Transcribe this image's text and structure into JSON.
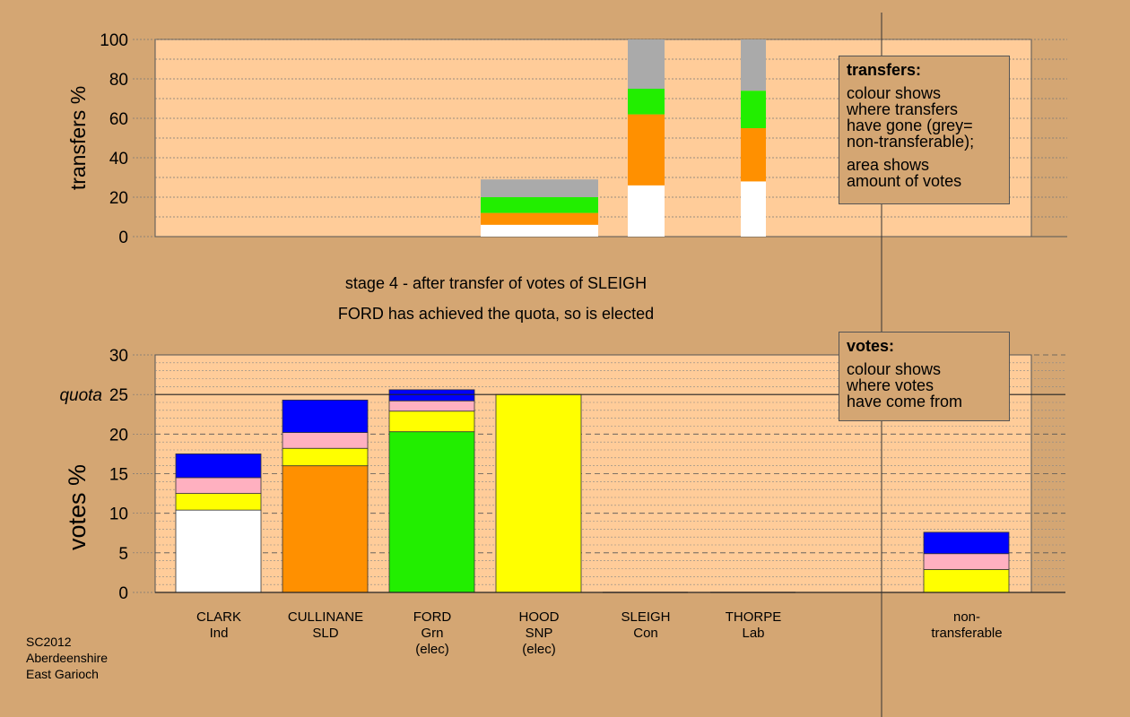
{
  "subtitle1": "stage 4 - after transfer of votes of SLEIGH",
  "subtitle2": "FORD has achieved the quota, so is elected",
  "source": [
    "SC2012",
    "Aberdeenshire",
    "East Garioch"
  ],
  "legend_transfers": {
    "title": "transfers:",
    "lines1": [
      "colour shows",
      "where transfers",
      "have gone (grey=",
      "non-transferable);"
    ],
    "lines2": [
      "area shows",
      "amount of votes"
    ]
  },
  "legend_votes": {
    "title": "votes:",
    "lines": [
      "colour shows",
      "where votes",
      "have come from"
    ]
  },
  "quota_label": "quota",
  "colors": {
    "background": "#d4a673",
    "plot": "#ffcc99",
    "Ind": "#ffffff",
    "SLD": "#ff9000",
    "Grn": "#22ee00",
    "SNP": "#ffff00",
    "Con": "#0000ff",
    "Lab": "#ffb0c0",
    "non-transferable": "#aaaaaa"
  },
  "chart_data": [
    {
      "type": "bar",
      "ylabel": "transfers %",
      "ylim": [
        0,
        100
      ],
      "yticks": [
        0,
        20,
        40,
        60,
        80,
        100
      ],
      "bars": [
        {
          "segments": [
            {
              "party": "Ind",
              "value": 6
            },
            {
              "party": "SLD",
              "value": 6
            },
            {
              "party": "Grn",
              "value": 8
            },
            {
              "party": "non-transferable",
              "value": 9
            }
          ]
        },
        {
          "segments": [
            {
              "party": "Ind",
              "value": 26
            },
            {
              "party": "SLD",
              "value": 36
            },
            {
              "party": "Grn",
              "value": 13
            },
            {
              "party": "non-transferable",
              "value": 25
            }
          ]
        },
        {
          "segments": [
            {
              "party": "Ind",
              "value": 28
            },
            {
              "party": "SLD",
              "value": 27
            },
            {
              "party": "Grn",
              "value": 19
            },
            {
              "party": "non-transferable",
              "value": 26
            }
          ]
        }
      ]
    },
    {
      "type": "bar",
      "ylabel": "votes %",
      "ylim": [
        0,
        30
      ],
      "yticks": [
        0,
        5,
        10,
        15,
        20,
        25,
        30
      ],
      "quota": 25,
      "candidates": [
        {
          "name": "CLARK",
          "party": "Ind",
          "status": "",
          "segments": [
            {
              "party": "Ind",
              "value": 10.4
            },
            {
              "party": "SNP",
              "value": 2.1
            },
            {
              "party": "Lab",
              "value": 2.0
            },
            {
              "party": "Con",
              "value": 3.0
            }
          ]
        },
        {
          "name": "CULLINANE",
          "party": "SLD",
          "status": "",
          "segments": [
            {
              "party": "SLD",
              "value": 16.0
            },
            {
              "party": "SNP",
              "value": 2.2
            },
            {
              "party": "Lab",
              "value": 2.0
            },
            {
              "party": "Con",
              "value": 4.1
            }
          ]
        },
        {
          "name": "FORD",
          "party": "Grn",
          "status": "(elec)",
          "segments": [
            {
              "party": "Grn",
              "value": 20.3
            },
            {
              "party": "SNP",
              "value": 2.6
            },
            {
              "party": "Lab",
              "value": 1.3
            },
            {
              "party": "Con",
              "value": 1.4
            }
          ]
        },
        {
          "name": "HOOD",
          "party": "SNP",
          "status": "(elec)",
          "segments": [
            {
              "party": "SNP",
              "value": 25.0
            }
          ]
        },
        {
          "name": "SLEIGH",
          "party": "Con",
          "status": "",
          "segments": []
        },
        {
          "name": "THORPE",
          "party": "Lab",
          "status": "",
          "segments": []
        },
        {
          "name": "non-",
          "party": "transferable",
          "status": "",
          "segments": [
            {
              "party": "SNP",
              "value": 2.9
            },
            {
              "party": "Lab",
              "value": 2.0
            },
            {
              "party": "Con",
              "value": 2.7
            }
          ]
        }
      ]
    }
  ]
}
